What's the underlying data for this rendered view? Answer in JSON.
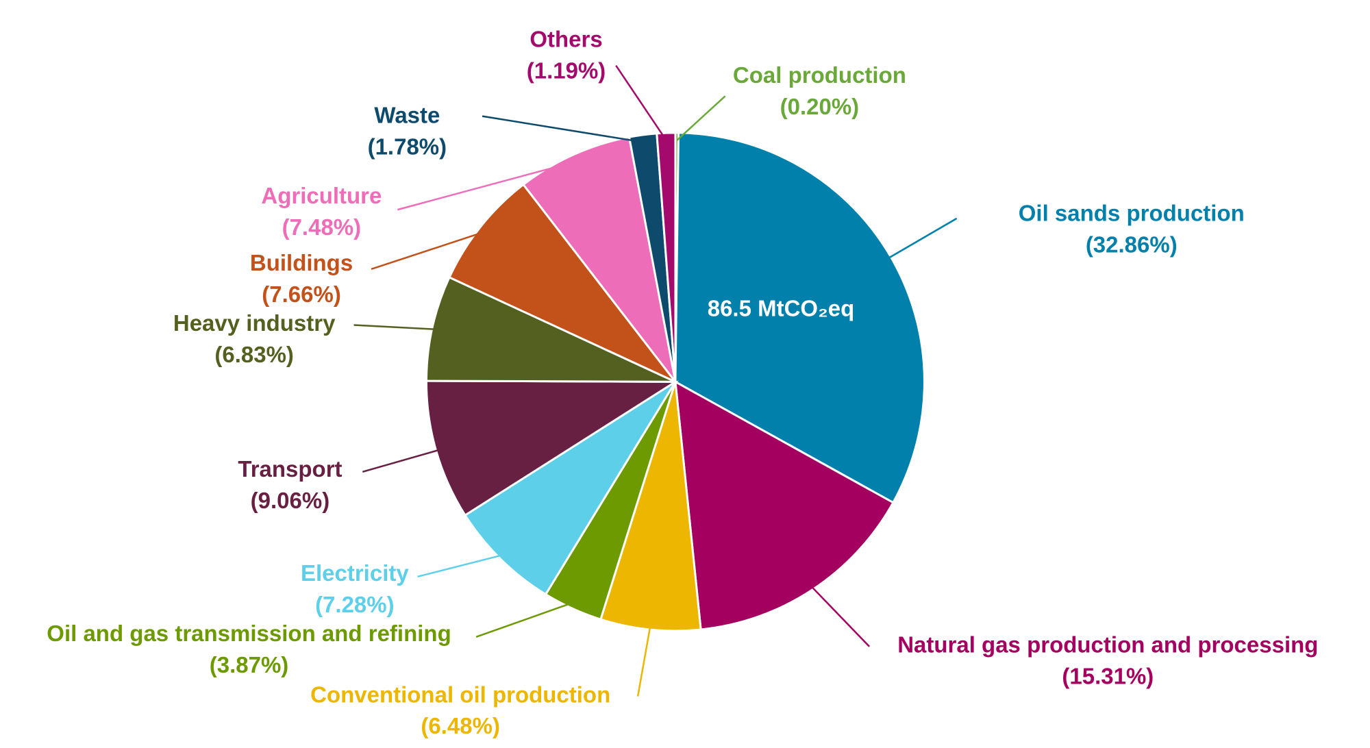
{
  "chart_data": {
    "type": "pie",
    "annotation": "86.5 MtCO₂eq",
    "categories": [
      "Coal production",
      "Oil sands production",
      "Natural gas production and processing",
      "Conventional oil production",
      "Oil and gas transmission and refining",
      "Electricity",
      "Transport",
      "Heavy industry",
      "Buildings",
      "Agriculture",
      "Waste",
      "Others"
    ],
    "values": [
      0.2,
      32.86,
      15.31,
      6.48,
      3.87,
      7.28,
      9.06,
      6.83,
      7.66,
      7.48,
      1.78,
      1.19
    ],
    "value_labels": [
      "(0.20%)",
      "(32.86%)",
      "(15.31%)",
      "(6.48%)",
      "(3.87%)",
      "(7.28%)",
      "(9.06%)",
      "(6.83%)",
      "(7.66%)",
      "(7.48%)",
      "(1.78%)",
      "(1.19%)"
    ],
    "colors": [
      "#6aa83a",
      "#0180ab",
      "#a4005f",
      "#edb600",
      "#6c9a00",
      "#5ecfe9",
      "#671f42",
      "#546020",
      "#c2511a",
      "#ee6db8",
      "#0e4a6c",
      "#a30a6c"
    ]
  }
}
